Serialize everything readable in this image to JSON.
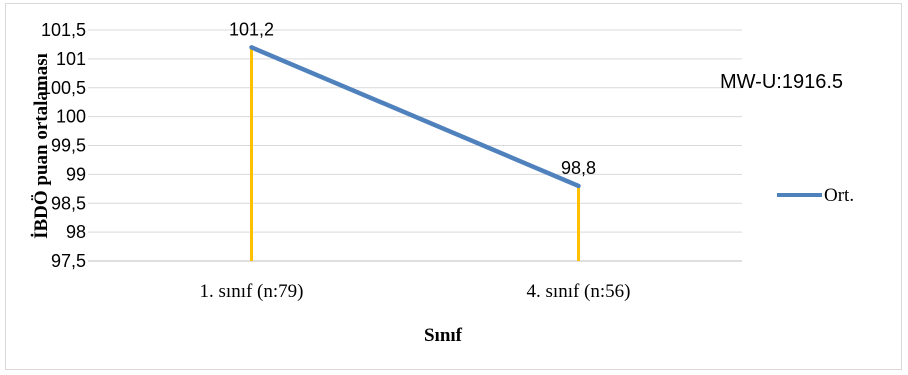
{
  "chart_data": {
    "type": "line",
    "title": "",
    "xlabel": "Sınıf",
    "ylabel": "İBDÖ puan ortalaması",
    "categories": [
      "1. sınıf (n:79)",
      "4. sınıf (n:56)"
    ],
    "series": [
      {
        "name": "Ort.",
        "values": [
          101.2,
          98.8
        ],
        "color": "#4f81bd"
      }
    ],
    "data_labels": [
      "101,2",
      "98,8"
    ],
    "drop_line_color": "#ffc000",
    "ylim": [
      97.5,
      101.5
    ],
    "y_ticks": [
      97.5,
      98,
      98.5,
      99,
      99.5,
      100,
      100.5,
      101,
      101.5
    ],
    "y_tick_labels": [
      "97,5",
      "98",
      "98,5",
      "99",
      "99,5",
      "100",
      "100,5",
      "101",
      "101,5"
    ],
    "annotation": "MW-U:1916.5",
    "grid": true,
    "legend_position": "right"
  }
}
